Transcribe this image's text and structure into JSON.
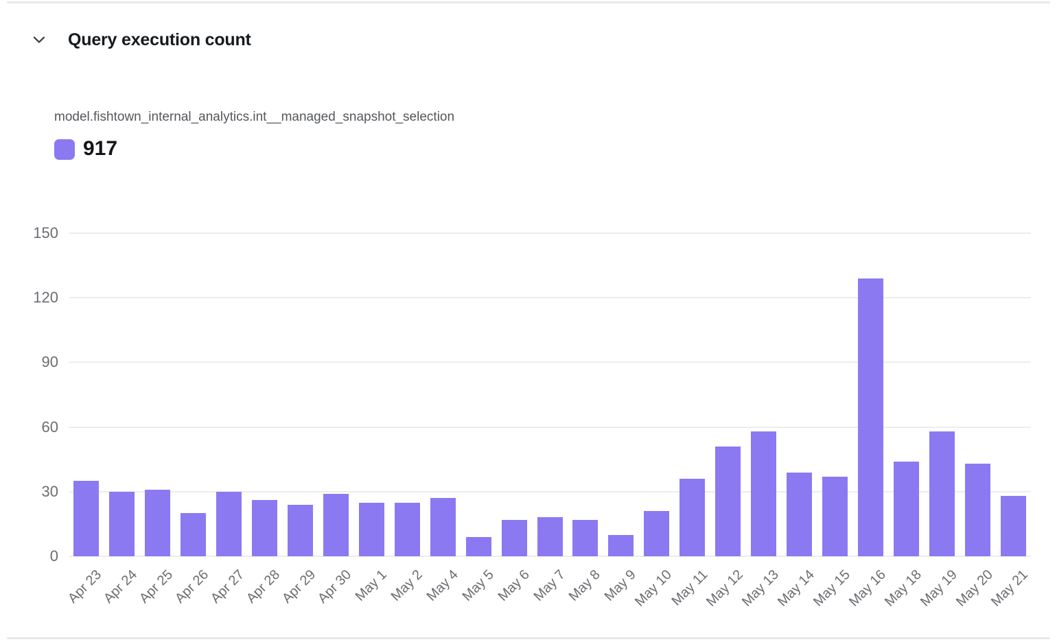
{
  "header": {
    "icon": "chevron-down-icon",
    "title": "Query execution count"
  },
  "series": {
    "label": "model.fishtown_internal_analytics.int__managed_snapshot_selection"
  },
  "legend": {
    "value": "917",
    "color": "#8B79F2"
  },
  "colors": {
    "bar": "#8B79F2",
    "grid_line": "#ededee",
    "divider": "#e8e9eb",
    "tick_text": "#6a6d71",
    "chevron": "#3d4046"
  },
  "chart_data": {
    "type": "bar",
    "title": "Query execution count",
    "series_name": "model.fishtown_internal_analytics.int__managed_snapshot_selection",
    "series_total": 917,
    "categories": [
      "Apr 23",
      "Apr 24",
      "Apr 25",
      "Apr 26",
      "Apr 27",
      "Apr 28",
      "Apr 29",
      "Apr 30",
      "May 1",
      "May 2",
      "May 4",
      "May 5",
      "May 6",
      "May 7",
      "May 8",
      "May 9",
      "May 10",
      "May 11",
      "May 12",
      "May 13",
      "May 14",
      "May 15",
      "May 16",
      "May 18",
      "May 19",
      "May 20",
      "May 21"
    ],
    "values": [
      35,
      30,
      31,
      20,
      30,
      26,
      24,
      29,
      25,
      25,
      27,
      9,
      17,
      18,
      17,
      10,
      21,
      36,
      51,
      58,
      39,
      37,
      129,
      44,
      58,
      43,
      28
    ],
    "xlabel": "",
    "ylabel": "",
    "ylim": [
      0,
      150
    ],
    "yticks": [
      0,
      30,
      60,
      90,
      120,
      150
    ],
    "grid": true,
    "legend_position": "top-left",
    "x_label_rotation": -45
  }
}
